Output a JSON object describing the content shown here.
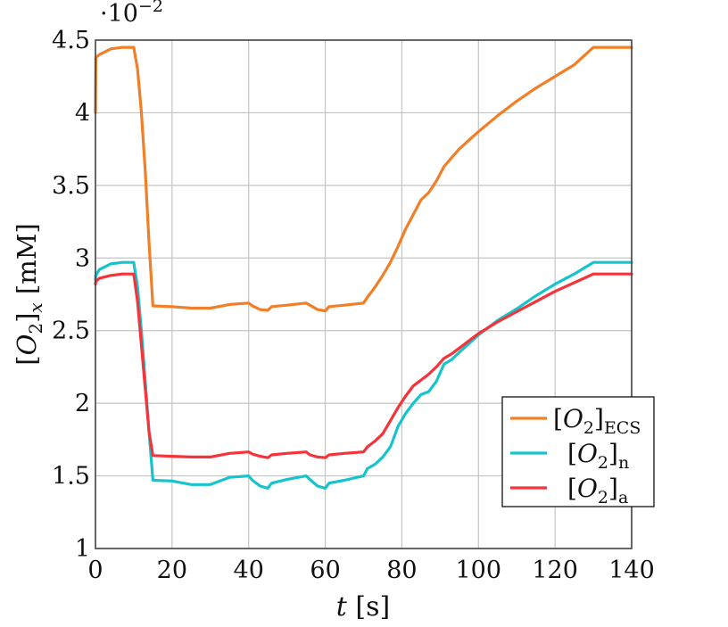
{
  "chart_data": {
    "type": "line",
    "title": "",
    "xlabel": "t [s]",
    "ylabel": "[O2]_x [mM]",
    "y_scale_label": "·10^−2",
    "y_scale_base": "·10",
    "y_scale_exp": "−2",
    "xlim": [
      0,
      140
    ],
    "ylim": [
      1,
      4.5
    ],
    "grid": true,
    "legend_position": "lower right",
    "x_ticks": [
      0,
      20,
      40,
      60,
      80,
      100,
      120,
      140
    ],
    "x_tick_labels": [
      "0",
      "20",
      "40",
      "60",
      "80",
      "100",
      "120",
      "140"
    ],
    "y_ticks": [
      1,
      1.5,
      2,
      2.5,
      3,
      3.5,
      4,
      4.5
    ],
    "y_tick_labels": [
      "1",
      "1.5",
      "2",
      "2.5",
      "3",
      "3.5",
      "4",
      "4.5"
    ],
    "series": [
      {
        "name": "[O2]_ECS",
        "label_main": "[O",
        "label_sub2": "2",
        "label_close": "]",
        "label_sub": "ECS",
        "color": "#f07f28",
        "x": [
          0,
          0.1,
          1,
          4,
          7,
          10,
          11,
          12,
          13,
          14,
          15,
          15.2,
          20,
          25,
          30,
          35,
          40,
          41,
          43,
          45,
          46,
          50,
          55,
          56,
          58,
          60,
          61,
          65,
          70,
          71,
          73,
          75,
          77,
          79,
          81,
          83,
          85,
          87,
          89,
          91,
          93,
          95,
          100,
          105,
          110,
          115,
          120,
          125,
          130,
          135,
          140
        ],
        "y": [
          4.0,
          4.38,
          4.4,
          4.44,
          4.45,
          4.45,
          4.3,
          4.0,
          3.6,
          3.1,
          2.67,
          2.67,
          2.665,
          2.655,
          2.655,
          2.68,
          2.69,
          2.67,
          2.645,
          2.64,
          2.665,
          2.675,
          2.69,
          2.675,
          2.645,
          2.635,
          2.665,
          2.675,
          2.69,
          2.73,
          2.8,
          2.88,
          2.97,
          3.08,
          3.2,
          3.3,
          3.4,
          3.45,
          3.53,
          3.63,
          3.69,
          3.75,
          3.87,
          3.98,
          4.08,
          4.17,
          4.25,
          4.33,
          4.45,
          4.45,
          4.45
        ]
      },
      {
        "name": "[O2]_n",
        "label_main": "[O",
        "label_sub2": "2",
        "label_close": "]",
        "label_sub": "n",
        "color": "#17c4cc",
        "x": [
          0,
          0.1,
          1,
          4,
          7,
          10,
          11,
          12,
          13,
          14,
          15,
          15.2,
          20,
          25,
          30,
          35,
          40,
          41,
          43,
          45,
          46,
          50,
          55,
          56,
          58,
          60,
          61,
          65,
          70,
          71,
          73,
          75,
          77,
          79,
          81,
          83,
          85,
          87,
          89,
          91,
          93,
          95,
          100,
          105,
          110,
          115,
          120,
          125,
          130,
          135,
          140
        ],
        "y": [
          2.85,
          2.88,
          2.92,
          2.96,
          2.97,
          2.97,
          2.8,
          2.5,
          2.15,
          1.8,
          1.47,
          1.47,
          1.465,
          1.44,
          1.44,
          1.49,
          1.5,
          1.47,
          1.43,
          1.415,
          1.45,
          1.475,
          1.5,
          1.475,
          1.43,
          1.415,
          1.45,
          1.47,
          1.5,
          1.55,
          1.58,
          1.63,
          1.7,
          1.84,
          1.93,
          2.0,
          2.06,
          2.08,
          2.15,
          2.27,
          2.3,
          2.35,
          2.47,
          2.57,
          2.65,
          2.74,
          2.82,
          2.89,
          2.97,
          2.97,
          2.97
        ]
      },
      {
        "name": "[O2]_a",
        "label_main": "[O",
        "label_sub2": "2",
        "label_close": "]",
        "label_sub": "a",
        "color": "#f5333a",
        "x": [
          0,
          0.1,
          1,
          4,
          7,
          10,
          11,
          12,
          13,
          14,
          15,
          15.2,
          20,
          25,
          30,
          35,
          40,
          41,
          43,
          45,
          46,
          50,
          55,
          56,
          58,
          60,
          61,
          65,
          70,
          71,
          73,
          75,
          77,
          79,
          81,
          83,
          85,
          87,
          89,
          91,
          93,
          95,
          100,
          105,
          110,
          115,
          120,
          125,
          130,
          135,
          140
        ],
        "y": [
          2.82,
          2.84,
          2.86,
          2.88,
          2.89,
          2.89,
          2.7,
          2.4,
          2.1,
          1.8,
          1.64,
          1.64,
          1.635,
          1.63,
          1.63,
          1.655,
          1.665,
          1.65,
          1.635,
          1.625,
          1.645,
          1.655,
          1.665,
          1.645,
          1.63,
          1.625,
          1.645,
          1.655,
          1.665,
          1.7,
          1.74,
          1.79,
          1.88,
          1.97,
          2.05,
          2.12,
          2.16,
          2.2,
          2.25,
          2.31,
          2.34,
          2.38,
          2.48,
          2.56,
          2.63,
          2.7,
          2.77,
          2.83,
          2.89,
          2.89,
          2.89
        ]
      }
    ]
  }
}
